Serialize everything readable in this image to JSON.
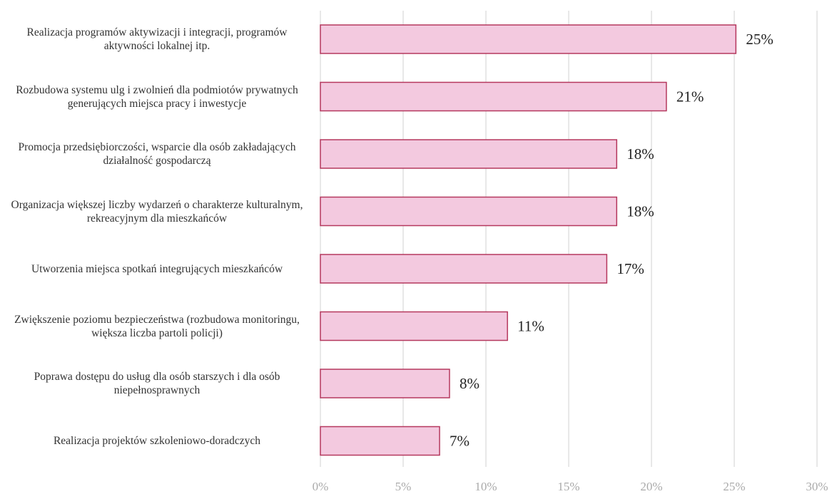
{
  "chart_data": {
    "type": "barh",
    "categories": [
      "Realizacja programów aktywizacji i integracji, programów aktywności lokalnej itp.",
      "Rozbudowa systemu ulg i zwolnień dla podmiotów prywatnych generujących miejsca pracy i inwestycje",
      "Promocja przedsiębiorczości, wsparcie dla osób zakładających działalność gospodarczą",
      "Organizacja większej liczby wydarzeń o charakterze kulturalnym, rekreacyjnym dla mieszkańców",
      "Utworzenia miejsca spotkań integrujących mieszkańców",
      "Zwiększenie poziomu bezpieczeństwa (rozbudowa monitoringu, większa liczba partoli policji)",
      "Poprawa dostępu do usług dla osób starszych i dla osób niepełnosprawnych",
      "Realizacja projektów szkoleniowo-doradczych"
    ],
    "values": [
      25.1,
      20.9,
      17.9,
      17.9,
      17.3,
      11.3,
      7.8,
      7.2
    ],
    "value_labels": [
      "25%",
      "21%",
      "18%",
      "18%",
      "17%",
      "11%",
      "8%",
      "7%"
    ],
    "color": "#f3c9df",
    "edge_color": "#b5385e",
    "xlim": [
      0,
      30
    ],
    "xticks": [
      {
        "value": 0,
        "label": "0%"
      },
      {
        "value": 5,
        "label": "5%"
      },
      {
        "value": 10,
        "label": "10%"
      },
      {
        "value": 15,
        "label": "15%"
      },
      {
        "value": 20,
        "label": "20%"
      },
      {
        "value": 25,
        "label": "25%"
      },
      {
        "value": 30,
        "label": "30%"
      }
    ],
    "grid": true
  }
}
